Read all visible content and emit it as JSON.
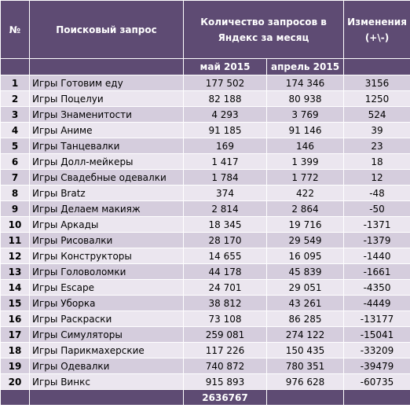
{
  "header": {
    "col_num": "№",
    "col_query": "Поисковый запрос",
    "col_count": "Количество запросов в Яндекс за месяц",
    "col_change": "Изменения (+\\-)",
    "sub_may": "май 2015",
    "sub_april": "апрель 2015"
  },
  "rows": [
    {
      "n": "1",
      "query": "Игры Готовим еду",
      "may": "177 502",
      "april": "174 346",
      "change": "3156"
    },
    {
      "n": "2",
      "query": "Игры Поцелуи",
      "may": "82 188",
      "april": "80 938",
      "change": "1250"
    },
    {
      "n": "3",
      "query": "Игры Знаменитости",
      "may": "4 293",
      "april": "3 769",
      "change": "524"
    },
    {
      "n": "4",
      "query": "Игры Аниме",
      "may": "91 185",
      "april": "91 146",
      "change": "39"
    },
    {
      "n": "5",
      "query": "Игры Танцевалки",
      "may": "169",
      "april": "146",
      "change": "23"
    },
    {
      "n": "6",
      "query": "Игры Долл-мейкеры",
      "may": "1 417",
      "april": "1 399",
      "change": "18"
    },
    {
      "n": "7",
      "query": "Игры Свадебные одевалки",
      "may": "1 784",
      "april": "1 772",
      "change": "12"
    },
    {
      "n": "8",
      "query": "Игры Bratz",
      "may": "374",
      "april": "422",
      "change": "-48"
    },
    {
      "n": "9",
      "query": "Игры Делаем макияж",
      "may": "2 814",
      "april": "2 864",
      "change": "-50"
    },
    {
      "n": "10",
      "query": "Игры Аркады",
      "may": "18 345",
      "april": "19 716",
      "change": "-1371"
    },
    {
      "n": "11",
      "query": "Игры Рисовалки",
      "may": "28 170",
      "april": "29 549",
      "change": "-1379"
    },
    {
      "n": "12",
      "query": "Игры Конструкторы",
      "may": "14 655",
      "april": "16 095",
      "change": "-1440"
    },
    {
      "n": "13",
      "query": "Игры Головоломки",
      "may": "44 178",
      "april": "45 839",
      "change": "-1661"
    },
    {
      "n": "14",
      "query": "Игры Escape",
      "may": "24 701",
      "april": "29 051",
      "change": "-4350"
    },
    {
      "n": "15",
      "query": "Игры Уборка",
      "may": "38 812",
      "april": "43 261",
      "change": "-4449"
    },
    {
      "n": "16",
      "query": "Игры Раскраски",
      "may": "73 108",
      "april": "86 285",
      "change": "-13177"
    },
    {
      "n": "17",
      "query": "Игры Симуляторы",
      "may": "259 081",
      "april": "274 122",
      "change": "-15041"
    },
    {
      "n": "18",
      "query": "Игры Парикмахерские",
      "may": "117 226",
      "april": "150 435",
      "change": "-33209"
    },
    {
      "n": "19",
      "query": "Игры Одевалки",
      "may": "740 872",
      "april": "780 351",
      "change": "-39479"
    },
    {
      "n": "20",
      "query": "Игры Винкс",
      "may": "915 893",
      "april": "976 628",
      "change": "-60735"
    }
  ],
  "total": {
    "may": "2636767"
  },
  "colors": {
    "header_bg": "#5e4b73",
    "row_odd": "#d5cddd",
    "row_even": "#ebe6ef"
  }
}
